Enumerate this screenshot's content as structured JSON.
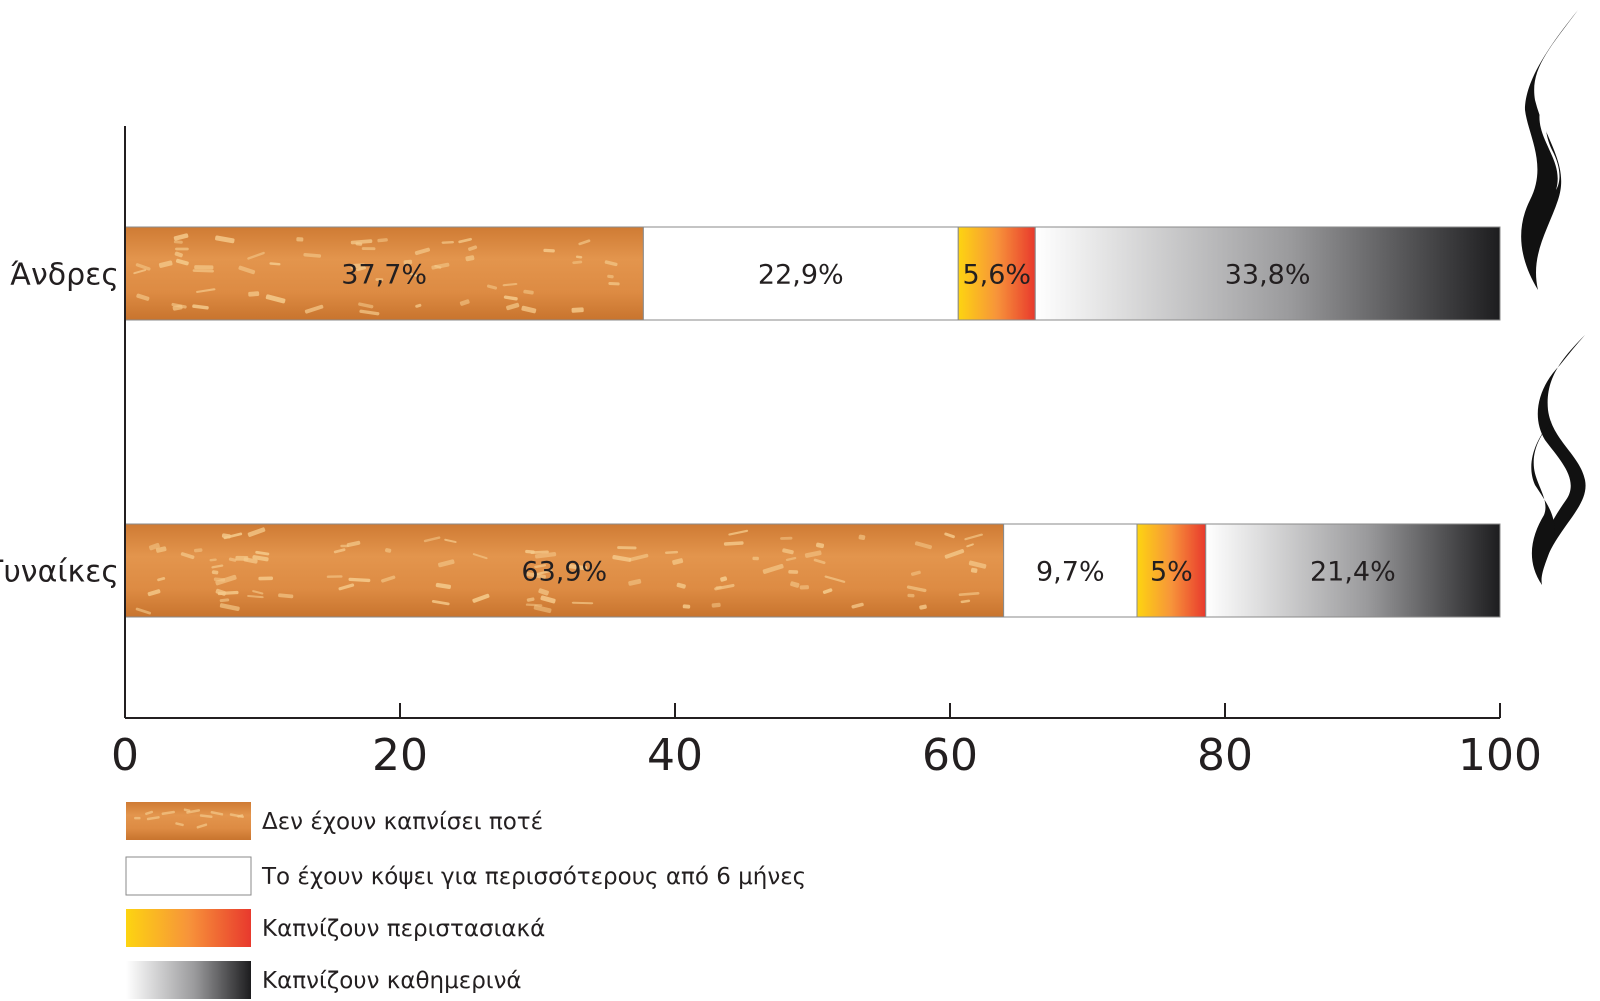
{
  "chart_data": {
    "type": "bar",
    "stacked": true,
    "orientation": "horizontal",
    "categories": [
      "Άνδρες",
      "Γυναίκες"
    ],
    "series": [
      {
        "name": "Δεν έχουν καπνίσει ποτέ",
        "values": [
          37.7,
          63.9
        ],
        "labels": [
          "37,7%",
          "63,9%"
        ],
        "fill": "tobacco"
      },
      {
        "name": "Το έχουν κόψει για περισσότερους από 6 μήνες",
        "values": [
          22.9,
          9.7
        ],
        "labels": [
          "22,9%",
          "9,7%"
        ],
        "fill": "white"
      },
      {
        "name": "Καπνίζουν περιστασιακά",
        "values": [
          5.6,
          5
        ],
        "labels": [
          "5,6%",
          "5%"
        ],
        "fill": "ember"
      },
      {
        "name": "Καπνίζουν καθημερινά",
        "values": [
          33.8,
          21.4
        ],
        "labels": [
          "33,8%",
          "21,4%"
        ],
        "fill": "ash"
      }
    ],
    "xlim": [
      0,
      100
    ],
    "xticks": [
      "0",
      "20",
      "40",
      "60",
      "80",
      "100"
    ],
    "tick_values": [
      0,
      20,
      40,
      60,
      80,
      100
    ],
    "grid": false,
    "legend_position": "bottom-left"
  },
  "colors": {
    "tobacco": "#e0904a",
    "tobacco_dark": "#c8742e",
    "speck": "#f4c98a",
    "ember_start": "#fdd411",
    "ember_mid": "#f7943a",
    "ember_end": "#e8392d",
    "ash_start": "#ffffff",
    "ash_end": "#1d1d1f",
    "axis": "#231f20",
    "smoke": "#111111"
  },
  "decoration": {
    "smoke_icon": "smoke-wisp-icon"
  }
}
